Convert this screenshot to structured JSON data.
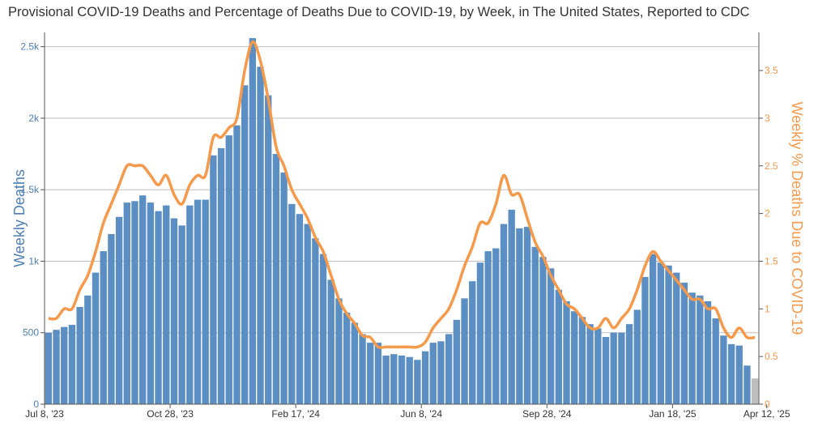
{
  "chart_data": {
    "type": "bar+line",
    "title": "Provisional COVID-19 Deaths and Percentage of Deaths Due to COVID-19, by Week, in The United States, Reported to CDC",
    "ylabel": "Weekly Deaths",
    "y2label": "Weekly % Deaths Due to COVID-19",
    "ylim": [
      0,
      2600
    ],
    "y2lim": [
      0,
      3.9
    ],
    "yticks": [
      0,
      500,
      1000,
      1500,
      2000,
      2500
    ],
    "ytick_labels": [
      "0",
      "500",
      "1k",
      "1.5k",
      "2k",
      "2.5k"
    ],
    "y2ticks": [
      0,
      0.5,
      1,
      1.5,
      2,
      2.5,
      3,
      3.5
    ],
    "y2tick_labels": [
      "0",
      "0.5",
      "1",
      "1.5",
      "2",
      "2.5",
      "3",
      "3.5"
    ],
    "xtick_labels": [
      {
        "index": 0,
        "label": "Jul 8, '23"
      },
      {
        "index": 16,
        "label": "Oct 28, '23"
      },
      {
        "index": 32,
        "label": "Feb 17, '24"
      },
      {
        "index": 48,
        "label": "Jun 8, '24"
      },
      {
        "index": 64,
        "label": "Sep 28, '24"
      },
      {
        "index": 80,
        "label": "Jan 18, '25"
      },
      {
        "index": 92,
        "label": "Apr 12, '25"
      }
    ],
    "grid": true,
    "colors": {
      "bars": "#5b8fc4",
      "bars_provisional": "#bdbdbd",
      "line": "#f5994a",
      "left_axis": "#4e7fb3",
      "right_axis": "#f5994a"
    },
    "provisional_from_index": 90,
    "series": [
      {
        "name": "Weekly Deaths",
        "type": "bar",
        "values": [
          500,
          520,
          540,
          555,
          680,
          760,
          920,
          1070,
          1190,
          1310,
          1410,
          1420,
          1460,
          1410,
          1350,
          1390,
          1300,
          1250,
          1390,
          1430,
          1430,
          1740,
          1790,
          1880,
          1950,
          2230,
          2560,
          2360,
          2160,
          1750,
          1620,
          1400,
          1330,
          1260,
          1160,
          1050,
          870,
          740,
          640,
          570,
          490,
          430,
          430,
          340,
          350,
          340,
          330,
          310,
          370,
          430,
          440,
          490,
          590,
          740,
          860,
          990,
          1070,
          1090,
          1260,
          1360,
          1230,
          1240,
          1100,
          1030,
          950,
          800,
          720,
          650,
          610,
          560,
          530,
          470,
          500,
          500,
          560,
          660,
          890,
          1050,
          990,
          970,
          920,
          850,
          780,
          760,
          720,
          600,
          480,
          420,
          410,
          270,
          180
        ]
      },
      {
        "name": "Weekly % Deaths Due to COVID-19",
        "type": "line",
        "values": [
          0.9,
          0.9,
          1.0,
          1.0,
          1.2,
          1.35,
          1.6,
          1.9,
          2.1,
          2.3,
          2.5,
          2.5,
          2.5,
          2.4,
          2.3,
          2.4,
          2.2,
          2.1,
          2.3,
          2.4,
          2.4,
          2.8,
          2.8,
          2.9,
          3.0,
          3.5,
          3.8,
          3.6,
          3.2,
          2.7,
          2.5,
          2.25,
          2.1,
          1.95,
          1.75,
          1.6,
          1.35,
          1.1,
          0.95,
          0.85,
          0.72,
          0.7,
          0.6,
          0.6,
          0.6,
          0.6,
          0.6,
          0.6,
          0.65,
          0.8,
          0.9,
          1.0,
          1.2,
          1.45,
          1.65,
          1.9,
          1.9,
          2.1,
          2.4,
          2.2,
          2.2,
          1.95,
          1.7,
          1.55,
          1.35,
          1.2,
          1.05,
          1.0,
          0.9,
          0.8,
          0.8,
          0.9,
          0.8,
          0.9,
          1.0,
          1.2,
          1.45,
          1.6,
          1.5,
          1.4,
          1.3,
          1.2,
          1.1,
          1.1,
          1.0,
          1.0,
          0.8,
          0.7,
          0.8,
          0.7,
          0.7
        ]
      }
    ]
  }
}
